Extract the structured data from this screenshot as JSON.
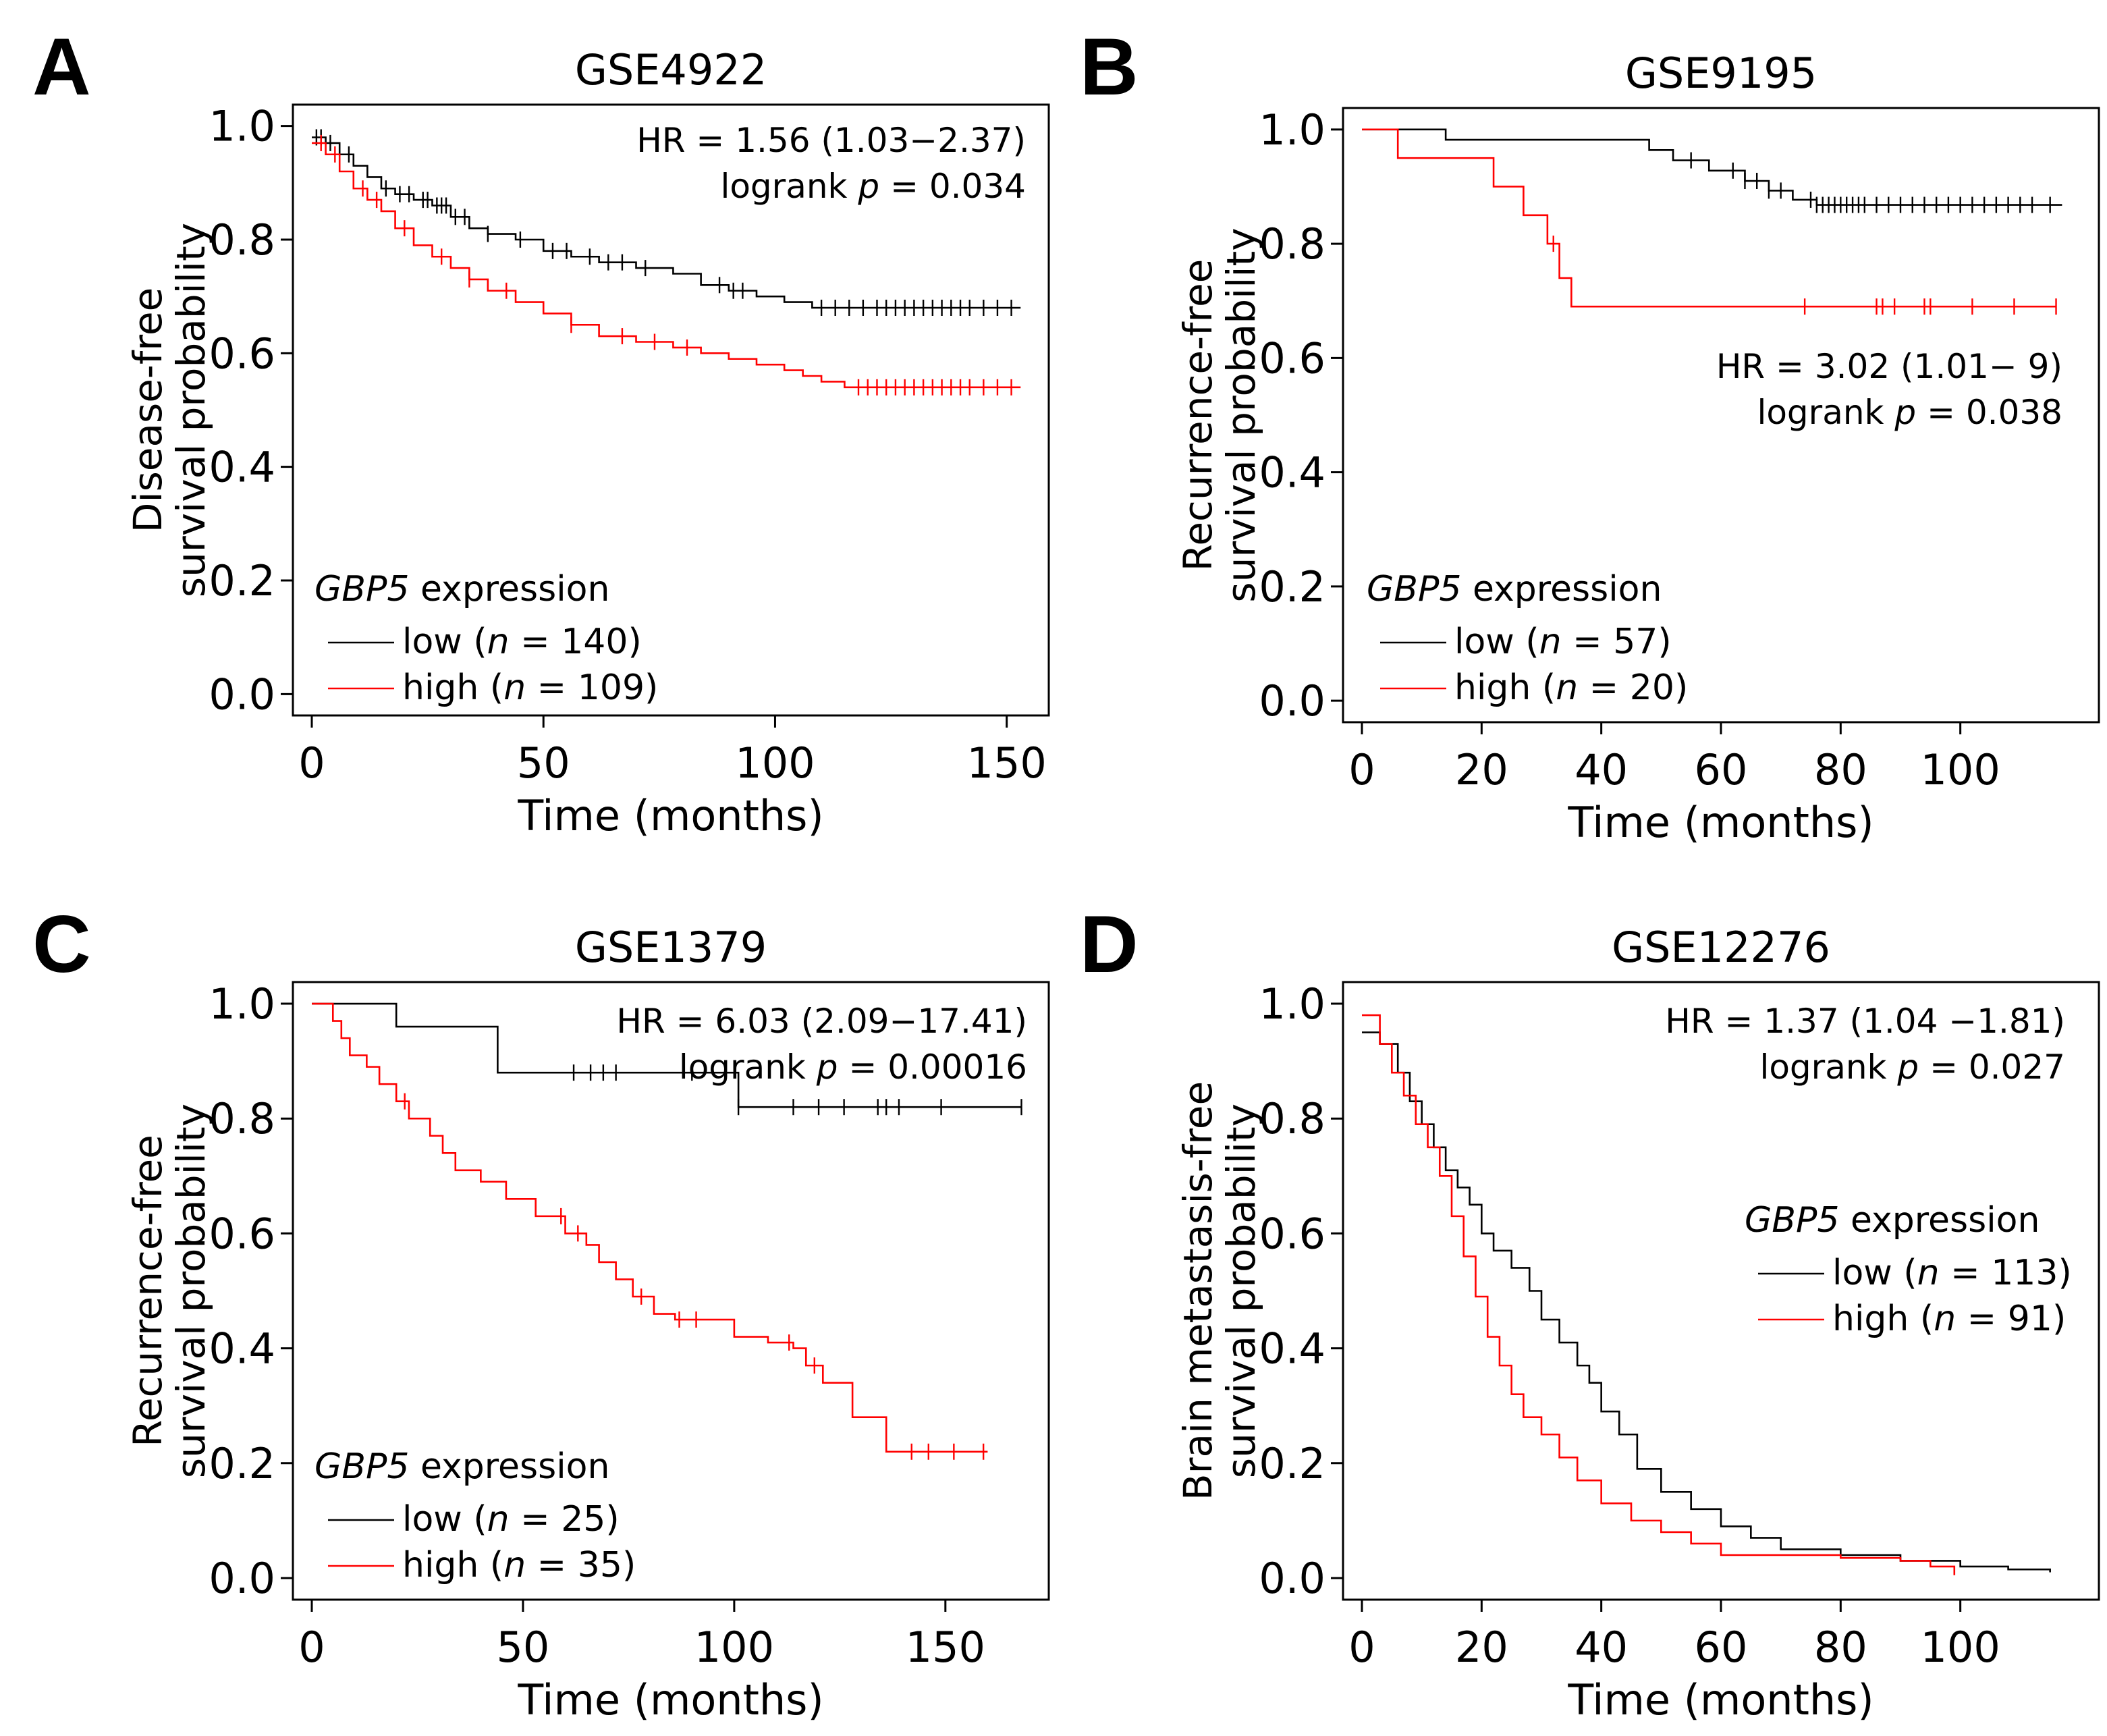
{
  "figure": {
    "colors": {
      "low": "#000000",
      "high": "#ff0000",
      "axis": "#000000",
      "background": "#ffffff"
    }
  },
  "chart_data": [
    {
      "panel": "A",
      "type": "line",
      "title": "GSE4922",
      "xlabel": "Time (months)",
      "ylabel": [
        "Disease-free",
        "survival probability"
      ],
      "xlim": [
        0,
        155
      ],
      "ylim": [
        0,
        1
      ],
      "xticks": [
        0,
        50,
        100,
        150
      ],
      "yticks": [
        0.0,
        0.2,
        0.4,
        0.6,
        0.8,
        1.0
      ],
      "ytick_labels": [
        "0.0",
        "0.2",
        "0.4",
        "0.6",
        "0.8",
        "1.0"
      ],
      "grid": false,
      "legend": {
        "title_italic": "GBP5",
        "title_rest": " expression",
        "placement": "bottom-left",
        "entries": [
          {
            "pre": "low (",
            "n": "n",
            "post": " = 140)"
          },
          {
            "pre": "high (",
            "n": "n",
            "post": " = 109)"
          }
        ]
      },
      "annotation": {
        "placement": "top-right",
        "hr_text": "HR = 1.56 (1.03−2.37)",
        "logrank_pre": "logrank ",
        "logrank_p": "p",
        "logrank_post": " = 0.034"
      },
      "series": [
        {
          "name": "low",
          "color": "#000000",
          "x": [
            0,
            3,
            6,
            9,
            12,
            15,
            18,
            22,
            26,
            30,
            34,
            38,
            44,
            50,
            56,
            62,
            70,
            78,
            84,
            90,
            96,
            102,
            108,
            153
          ],
          "y": [
            0.98,
            0.97,
            0.95,
            0.93,
            0.91,
            0.89,
            0.88,
            0.87,
            0.86,
            0.84,
            0.82,
            0.81,
            0.8,
            0.78,
            0.77,
            0.76,
            0.75,
            0.74,
            0.72,
            0.71,
            0.7,
            0.69,
            0.68,
            0.68
          ],
          "censor_x": [
            1,
            2,
            4,
            8,
            16,
            19,
            21,
            24,
            25,
            27,
            28,
            29,
            31,
            33,
            38,
            45,
            52,
            55,
            60,
            64,
            67,
            72,
            88,
            91,
            93,
            110,
            113,
            116,
            119,
            122,
            124,
            126,
            128,
            130,
            132,
            134,
            136,
            138,
            140,
            142,
            145,
            148,
            151
          ]
        },
        {
          "name": "high",
          "color": "#ff0000",
          "x": [
            0,
            3,
            6,
            9,
            12,
            15,
            18,
            22,
            26,
            30,
            34,
            38,
            44,
            50,
            56,
            62,
            70,
            78,
            84,
            90,
            96,
            102,
            106,
            110,
            115,
            153
          ],
          "y": [
            0.97,
            0.95,
            0.92,
            0.89,
            0.87,
            0.85,
            0.82,
            0.79,
            0.77,
            0.75,
            0.73,
            0.71,
            0.69,
            0.67,
            0.65,
            0.63,
            0.62,
            0.61,
            0.6,
            0.59,
            0.58,
            0.57,
            0.56,
            0.55,
            0.54,
            0.54
          ],
          "censor_x": [
            2,
            5,
            11,
            14,
            20,
            28,
            34,
            42,
            56,
            67,
            74,
            81,
            118,
            120,
            122,
            124,
            126,
            128,
            130,
            132,
            134,
            136,
            138,
            140,
            142,
            145,
            148,
            151
          ]
        }
      ]
    },
    {
      "panel": "B",
      "type": "line",
      "title": "GSE9195",
      "xlabel": "Time (months)",
      "ylabel": [
        "Recurrence-free",
        "survival probability"
      ],
      "xlim": [
        0,
        120
      ],
      "ylim": [
        0,
        1
      ],
      "xticks": [
        0,
        20,
        40,
        60,
        80,
        100
      ],
      "yticks": [
        0.0,
        0.2,
        0.4,
        0.6,
        0.8,
        1.0
      ],
      "ytick_labels": [
        "0.0",
        "0.2",
        "0.4",
        "0.6",
        "0.8",
        "1.0"
      ],
      "grid": false,
      "legend": {
        "title_italic": "GBP5",
        "title_rest": " expression",
        "placement": "bottom-left",
        "entries": [
          {
            "pre": "low (",
            "n": "n",
            "post": " = 57)"
          },
          {
            "pre": "high (",
            "n": "n",
            "post": " = 20)"
          }
        ]
      },
      "annotation": {
        "placement": "middle-right",
        "hr_text": "HR = 3.02 (1.01− 9)",
        "logrank_pre": "logrank ",
        "logrank_p": "p",
        "logrank_post": " = 0.038"
      },
      "series": [
        {
          "name": "low",
          "color": "#000000",
          "x": [
            0,
            14,
            45,
            48,
            52,
            58,
            64,
            68,
            72,
            76,
            117
          ],
          "y": [
            1.0,
            0.982,
            0.982,
            0.964,
            0.946,
            0.928,
            0.91,
            0.893,
            0.877,
            0.868,
            0.868
          ],
          "censor_x": [
            55,
            62,
            64,
            66,
            68,
            70,
            75,
            76,
            77,
            78,
            79,
            80,
            81,
            82,
            83,
            84,
            86,
            88,
            90,
            92,
            94,
            96,
            98,
            100,
            102,
            104,
            106,
            108,
            110,
            112,
            115
          ]
        },
        {
          "name": "high",
          "color": "#ff0000",
          "x": [
            0,
            6,
            22,
            27,
            31,
            33,
            35,
            116
          ],
          "y": [
            1.0,
            0.95,
            0.9,
            0.85,
            0.8,
            0.74,
            0.69,
            0.69
          ],
          "censor_x": [
            32,
            74,
            86,
            87,
            89,
            94,
            95,
            102,
            109,
            116
          ]
        }
      ]
    },
    {
      "panel": "C",
      "type": "line",
      "title": "GSE1379",
      "xlabel": "Time (months)",
      "ylabel": [
        "Recurrence-free",
        "survival probability"
      ],
      "xlim": [
        0,
        170
      ],
      "ylim": [
        0,
        1
      ],
      "xticks": [
        0,
        50,
        100,
        150
      ],
      "yticks": [
        0.0,
        0.2,
        0.4,
        0.6,
        0.8,
        1.0
      ],
      "ytick_labels": [
        "0.0",
        "0.2",
        "0.4",
        "0.6",
        "0.8",
        "1.0"
      ],
      "grid": false,
      "legend": {
        "title_italic": "GBP5",
        "title_rest": " expression",
        "placement": "bottom-left",
        "entries": [
          {
            "pre": "low (",
            "n": "n",
            "post": " = 25)"
          },
          {
            "pre": "high (",
            "n": "n",
            "post": " = 35)"
          }
        ]
      },
      "annotation": {
        "placement": "top-right",
        "hr_text": "HR = 6.03 (2.09−17.41)",
        "logrank_pre": "logrank ",
        "logrank_p": "p",
        "logrank_post": " = 0.00016"
      },
      "series": [
        {
          "name": "low",
          "color": "#000000",
          "x": [
            0,
            20,
            44,
            101,
            168
          ],
          "y": [
            1.0,
            0.96,
            0.88,
            0.82,
            0.82
          ],
          "censor_x": [
            62,
            66,
            69,
            72,
            90,
            101,
            114,
            120,
            126,
            134,
            136,
            139,
            149,
            168
          ]
        },
        {
          "name": "high",
          "color": "#ff0000",
          "x": [
            0,
            5,
            7,
            9,
            13,
            16,
            20,
            23,
            28,
            31,
            34,
            40,
            46,
            53,
            60,
            65,
            68,
            72,
            76,
            81,
            86,
            100,
            103,
            108,
            114,
            117,
            121,
            128,
            136,
            160
          ],
          "y": [
            1.0,
            0.97,
            0.94,
            0.91,
            0.89,
            0.86,
            0.83,
            0.8,
            0.77,
            0.74,
            0.71,
            0.69,
            0.66,
            0.63,
            0.6,
            0.58,
            0.55,
            0.52,
            0.49,
            0.46,
            0.45,
            0.42,
            0.42,
            0.41,
            0.4,
            0.37,
            0.34,
            0.28,
            0.22,
            0.22
          ],
          "censor_x": [
            22,
            59,
            63,
            78,
            87,
            91,
            113,
            119,
            142,
            146,
            152,
            159
          ]
        }
      ]
    },
    {
      "panel": "D",
      "type": "line",
      "title": "GSE12276",
      "xlabel": "Time (months)",
      "ylabel": [
        "Brain metastasis-free",
        "survival probability"
      ],
      "xlim": [
        0,
        120
      ],
      "ylim": [
        0,
        1
      ],
      "xticks": [
        0,
        20,
        40,
        60,
        80,
        100
      ],
      "yticks": [
        0.0,
        0.2,
        0.4,
        0.6,
        0.8,
        1.0
      ],
      "ytick_labels": [
        "0.0",
        "0.2",
        "0.4",
        "0.6",
        "0.8",
        "1.0"
      ],
      "grid": false,
      "legend": {
        "title_italic": "GBP5",
        "title_rest": " expression",
        "placement": "right",
        "entries": [
          {
            "pre": "low (",
            "n": "n",
            "post": " = 113)"
          },
          {
            "pre": "high (",
            "n": "n",
            "post": " = 91)"
          }
        ]
      },
      "annotation": {
        "placement": "top-right",
        "hr_text": "HR = 1.37 (1.04 −1.81)",
        "logrank_pre": "logrank ",
        "logrank_p": "p",
        "logrank_post": " = 0.027"
      },
      "series": [
        {
          "name": "low",
          "color": "#000000",
          "x": [
            0,
            3,
            6,
            8,
            10,
            12,
            14,
            16,
            18,
            20,
            22,
            25,
            28,
            30,
            33,
            36,
            38,
            40,
            43,
            46,
            50,
            55,
            60,
            65,
            70,
            80,
            90,
            100,
            108,
            115
          ],
          "y": [
            0.95,
            0.93,
            0.88,
            0.83,
            0.79,
            0.75,
            0.71,
            0.68,
            0.65,
            0.6,
            0.57,
            0.54,
            0.5,
            0.45,
            0.41,
            0.37,
            0.34,
            0.29,
            0.25,
            0.19,
            0.15,
            0.12,
            0.09,
            0.07,
            0.05,
            0.04,
            0.03,
            0.02,
            0.015,
            0.01
          ],
          "censor_x": []
        },
        {
          "name": "high",
          "color": "#ff0000",
          "x": [
            0,
            3,
            5,
            7,
            9,
            11,
            13,
            15,
            17,
            19,
            21,
            23,
            25,
            27,
            30,
            33,
            36,
            40,
            45,
            50,
            55,
            60,
            70,
            80,
            90,
            95,
            99
          ],
          "y": [
            0.98,
            0.93,
            0.88,
            0.84,
            0.79,
            0.75,
            0.7,
            0.63,
            0.56,
            0.49,
            0.42,
            0.37,
            0.32,
            0.28,
            0.25,
            0.21,
            0.17,
            0.13,
            0.1,
            0.08,
            0.06,
            0.04,
            0.04,
            0.035,
            0.03,
            0.02,
            0.005
          ],
          "censor_x": []
        }
      ]
    }
  ]
}
